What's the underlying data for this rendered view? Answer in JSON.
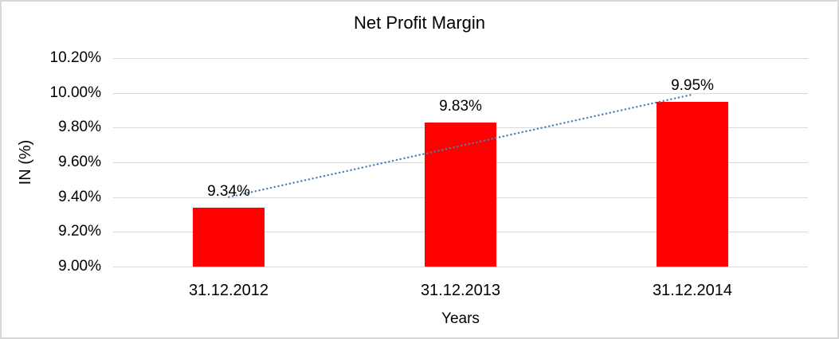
{
  "chart_data": {
    "type": "bar",
    "title": "Net Profit Margin",
    "xlabel": "Years",
    "ylabel": "IN (%)",
    "categories": [
      "31.12.2012",
      "31.12.2013",
      "31.12.2014"
    ],
    "values": [
      9.34,
      9.83,
      9.95
    ],
    "value_labels": [
      "9.34%",
      "9.83%",
      "9.95%"
    ],
    "ylim": [
      9.0,
      10.2
    ],
    "ytick_step": 0.2,
    "ytick_labels": [
      "9.00%",
      "9.20%",
      "9.40%",
      "9.60%",
      "9.80%",
      "10.00%",
      "10.20%"
    ],
    "grid": true,
    "legend": "none",
    "trendline": {
      "type": "linear",
      "style": "dotted",
      "start_value": 9.4,
      "end_value": 9.99
    },
    "colors": {
      "bar": "#ff0000",
      "trendline": "#4a7ebb",
      "gridline": "#d9d9d9",
      "text": "#000000",
      "frame_border": "#d8d8d8",
      "background": "#ffffff"
    }
  }
}
